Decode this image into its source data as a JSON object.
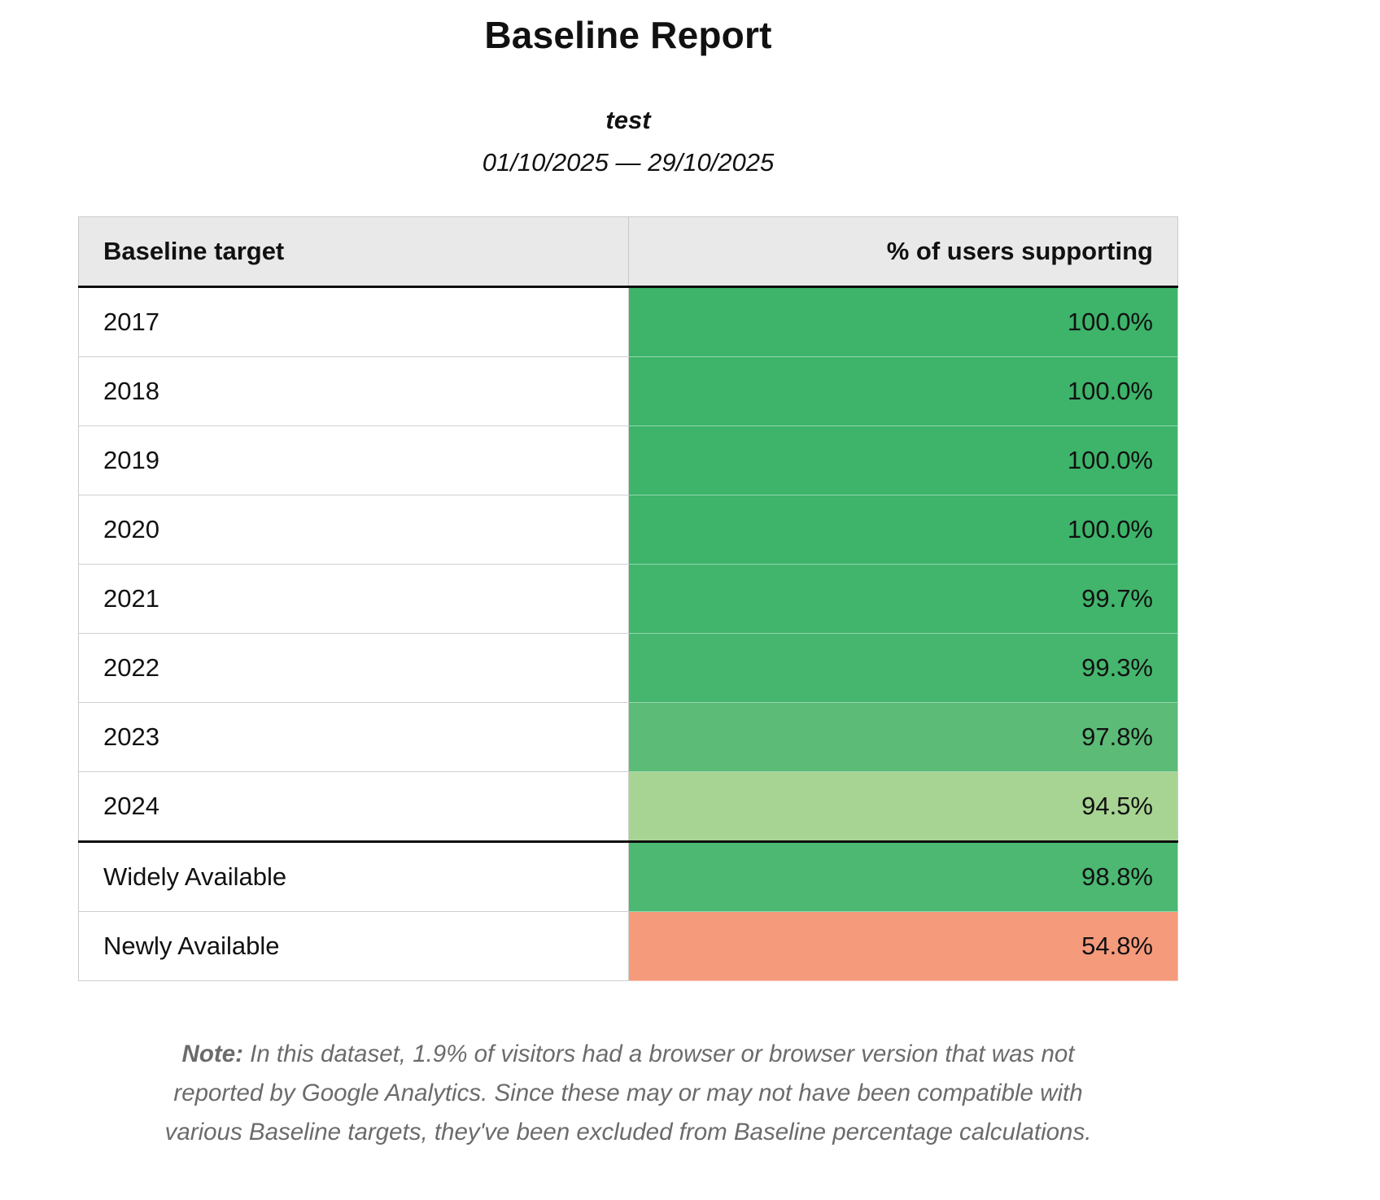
{
  "header": {
    "title": "Baseline Report",
    "subtitle": "test",
    "date_range": "01/10/2025 — 29/10/2025"
  },
  "table": {
    "columns": [
      "Baseline target",
      "% of users supporting"
    ],
    "rows": [
      {
        "label": "2017",
        "value": "100.0%",
        "color": "#3db46a"
      },
      {
        "label": "2018",
        "value": "100.0%",
        "color": "#3db46a"
      },
      {
        "label": "2019",
        "value": "100.0%",
        "color": "#3db46a"
      },
      {
        "label": "2020",
        "value": "100.0%",
        "color": "#3db46a"
      },
      {
        "label": "2021",
        "value": "99.7%",
        "color": "#41b56c"
      },
      {
        "label": "2022",
        "value": "99.3%",
        "color": "#46b66e"
      },
      {
        "label": "2023",
        "value": "97.8%",
        "color": "#5bbb77"
      },
      {
        "label": "2024",
        "value": "94.5%",
        "color": "#a7d492"
      },
      {
        "label": "Widely Available",
        "value": "98.8%",
        "color": "#4cb872",
        "divider_above": true
      },
      {
        "label": "Newly Available",
        "value": "54.8%",
        "color": "#f69a7c"
      }
    ]
  },
  "note": {
    "label": "Note:",
    "text": " In this dataset, 1.9% of visitors had a browser or browser version that was not reported by Google Analytics. Since these may or may not have been compatible with various Baseline targets, they've been excluded from Baseline percentage calculations."
  }
}
